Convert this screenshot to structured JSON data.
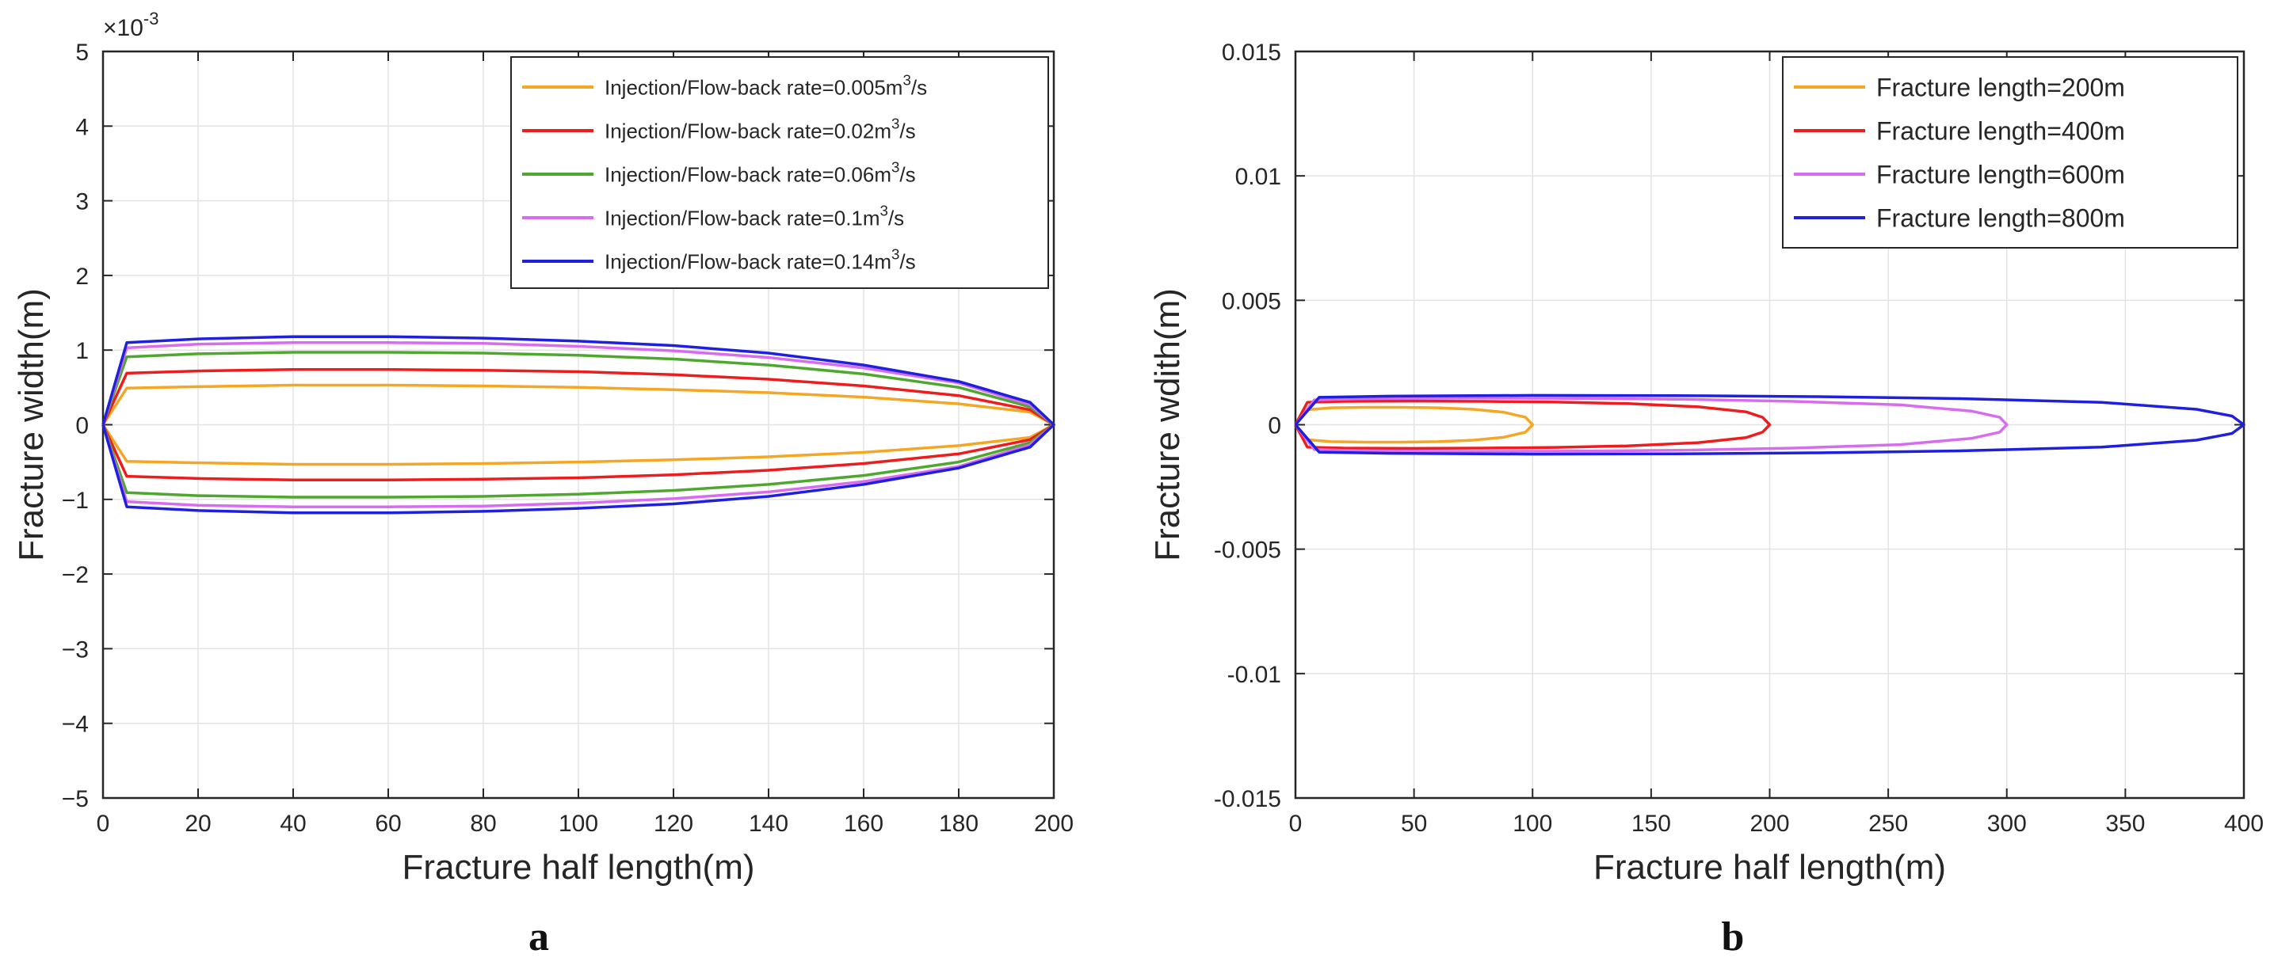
{
  "colors": {
    "orange": "#f5a623",
    "red": "#ee1c1c",
    "green": "#4ea72e",
    "magenta": "#d86cf0",
    "blue": "#1f1fe0",
    "grid": "#e3e3e3",
    "axis": "#262626"
  },
  "chart_data": [
    {
      "panel_label": "a",
      "type": "line",
      "title": "",
      "xlabel": "Fracture half length(m)",
      "ylabel": "Fracture width(m)",
      "exponent_label": "×10",
      "exponent_power": "-3",
      "xlim": [
        0,
        200
      ],
      "ylim": [
        -5,
        5
      ],
      "xticks": [
        0,
        20,
        40,
        60,
        80,
        100,
        120,
        140,
        160,
        180,
        200
      ],
      "yticks": [
        -5,
        -4,
        -3,
        -2,
        -1,
        0,
        1,
        2,
        3,
        4,
        5
      ],
      "grid": true,
      "legend_position": "top-right",
      "series": [
        {
          "name": "Injection/Flow-back rate=0.005m³/s",
          "legend_main": "Injection/Flow-back rate=0.005m",
          "legend_sup": "3",
          "legend_tail": "/s",
          "color": "#f5a623",
          "x": [
            0,
            5,
            20,
            40,
            60,
            80,
            100,
            120,
            140,
            160,
            180,
            195,
            200
          ],
          "y": [
            0,
            0.49,
            0.51,
            0.53,
            0.53,
            0.52,
            0.5,
            0.47,
            0.43,
            0.37,
            0.28,
            0.17,
            0
          ]
        },
        {
          "name": "Injection/Flow-back rate=0.02m³/s",
          "legend_main": "Injection/Flow-back rate=0.02m",
          "legend_sup": "3",
          "legend_tail": "/s",
          "color": "#ee1c1c",
          "x": [
            0,
            5,
            20,
            40,
            60,
            80,
            100,
            120,
            140,
            160,
            180,
            195,
            200
          ],
          "y": [
            0,
            0.69,
            0.72,
            0.74,
            0.74,
            0.73,
            0.71,
            0.67,
            0.61,
            0.52,
            0.39,
            0.2,
            0
          ]
        },
        {
          "name": "Injection/Flow-back rate=0.06m³/s",
          "legend_main": "Injection/Flow-back rate=0.06m",
          "legend_sup": "3",
          "legend_tail": "/s",
          "color": "#4ea72e",
          "x": [
            0,
            5,
            20,
            40,
            60,
            80,
            100,
            120,
            140,
            160,
            180,
            195,
            200
          ],
          "y": [
            0,
            0.91,
            0.95,
            0.97,
            0.97,
            0.96,
            0.93,
            0.88,
            0.8,
            0.68,
            0.5,
            0.24,
            0
          ]
        },
        {
          "name": "Injection/Flow-back rate=0.1m³/s",
          "legend_main": "Injection/Flow-back rate=0.1m",
          "legend_sup": "3",
          "legend_tail": "/s",
          "color": "#d86cf0",
          "x": [
            0,
            5,
            20,
            40,
            60,
            80,
            100,
            120,
            140,
            160,
            180,
            195,
            200
          ],
          "y": [
            0,
            1.03,
            1.08,
            1.1,
            1.1,
            1.09,
            1.05,
            0.99,
            0.9,
            0.76,
            0.56,
            0.27,
            0
          ]
        },
        {
          "name": "Injection/Flow-back rate=0.14m³/s",
          "legend_main": "Injection/Flow-back rate=0.14m",
          "legend_sup": "3",
          "legend_tail": "/s",
          "color": "#1f1fe0",
          "x": [
            0,
            5,
            20,
            40,
            60,
            80,
            100,
            120,
            140,
            160,
            180,
            195,
            200
          ],
          "y": [
            0,
            1.1,
            1.15,
            1.18,
            1.18,
            1.16,
            1.12,
            1.06,
            0.96,
            0.8,
            0.58,
            0.3,
            0
          ]
        }
      ]
    },
    {
      "panel_label": "b",
      "type": "line",
      "title": "",
      "xlabel": "Fracture half length(m)",
      "ylabel": "Fracture wdith(m)",
      "xlim": [
        0,
        400
      ],
      "ylim": [
        -0.015,
        0.015
      ],
      "xticks": [
        0,
        50,
        100,
        150,
        200,
        250,
        300,
        350,
        400
      ],
      "yticks": [
        -0.015,
        -0.01,
        -0.005,
        0,
        0.005,
        0.01,
        0.015
      ],
      "ytick_labels": [
        "-0.015",
        "-0.01",
        "-0.005",
        "0",
        "0.005",
        "0.01",
        "0.015"
      ],
      "grid": true,
      "legend_position": "top-right",
      "series": [
        {
          "name": "Fracture length=200m",
          "color": "#f5a623",
          "x": [
            0,
            5,
            15,
            30,
            45,
            60,
            75,
            88,
            97,
            100
          ],
          "y": [
            0,
            0.0006,
            0.00068,
            0.0007,
            0.0007,
            0.00068,
            0.00062,
            0.0005,
            0.0003,
            0
          ]
        },
        {
          "name": "Fracture length=400m",
          "color": "#ee1c1c",
          "x": [
            0,
            5,
            20,
            50,
            80,
            110,
            140,
            170,
            190,
            197,
            200
          ],
          "y": [
            0,
            0.0009,
            0.00094,
            0.00095,
            0.00094,
            0.00091,
            0.00085,
            0.00072,
            0.00052,
            0.0003,
            0
          ]
        },
        {
          "name": "Fracture length=600m",
          "color": "#d86cf0",
          "x": [
            0,
            8,
            30,
            75,
            120,
            165,
            210,
            255,
            285,
            297,
            300
          ],
          "y": [
            0,
            0.001,
            0.00105,
            0.00107,
            0.00106,
            0.00102,
            0.00094,
            0.0008,
            0.00055,
            0.0003,
            0
          ]
        },
        {
          "name": "Fracture length=800m",
          "color": "#1f1fe0",
          "x": [
            0,
            10,
            40,
            100,
            160,
            220,
            280,
            340,
            380,
            395,
            400
          ],
          "y": [
            0,
            0.0011,
            0.00115,
            0.00118,
            0.00117,
            0.00113,
            0.00105,
            0.0009,
            0.00062,
            0.00035,
            0
          ]
        }
      ]
    }
  ]
}
